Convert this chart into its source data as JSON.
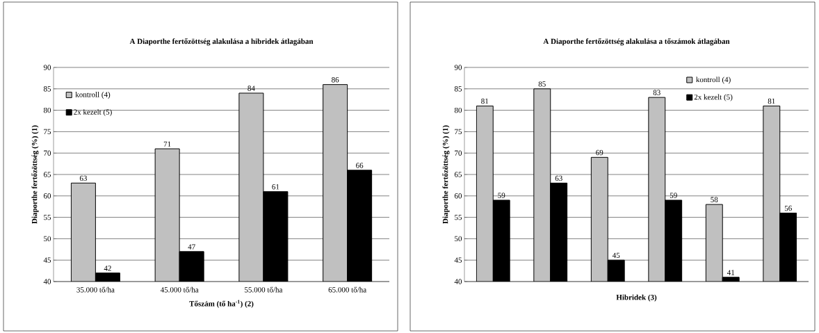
{
  "chart_data": [
    {
      "type": "bar",
      "title": "A Diaporthe fertőzöttség alakulása a hibridek átlagában",
      "xlabel": "Tőszám (tő ha$^{-1}$) (2)",
      "ylabel": "Diaporthe fertőzöttség (%) (1)",
      "categories": [
        "35.000 tő/ha",
        "45.000 tő/ha",
        "55.000 tő/ha",
        "65.000 tő/ha"
      ],
      "series": [
        {
          "name": "kontroll (4)",
          "color": "#c0c0c0",
          "values": [
            63,
            71,
            84,
            86
          ]
        },
        {
          "name": "2x kezelt (5)",
          "color": "#000000",
          "values": [
            42,
            47,
            61,
            66
          ]
        }
      ],
      "ylim": [
        40,
        90
      ],
      "yticks": [
        40,
        45,
        50,
        55,
        60,
        65,
        70,
        75,
        80,
        85,
        90
      ],
      "grid": "y",
      "legend": "top left",
      "data_labels": true
    },
    {
      "type": "bar",
      "title": "A Diaporthe fertőzöttség alakulása a tőszámok átlagában",
      "xlabel": "Hibridek (3)",
      "ylabel": "Diaporthe fertőzöttség (%) (1)",
      "categories": [
        null,
        null,
        null,
        null,
        null,
        null
      ],
      "series": [
        {
          "name": "kontroll (4)",
          "color": "#c0c0c0",
          "values": [
            81,
            85,
            69,
            83,
            58,
            81
          ]
        },
        {
          "name": "2x kezelt (5)",
          "color": "#000000",
          "values": [
            59,
            63,
            45,
            59,
            41,
            56
          ]
        }
      ],
      "ylim": [
        40,
        90
      ],
      "yticks": [
        40,
        45,
        50,
        55,
        60,
        65,
        70,
        75,
        80,
        85,
        90
      ],
      "grid": "y",
      "legend": "top right",
      "data_labels": true
    }
  ]
}
